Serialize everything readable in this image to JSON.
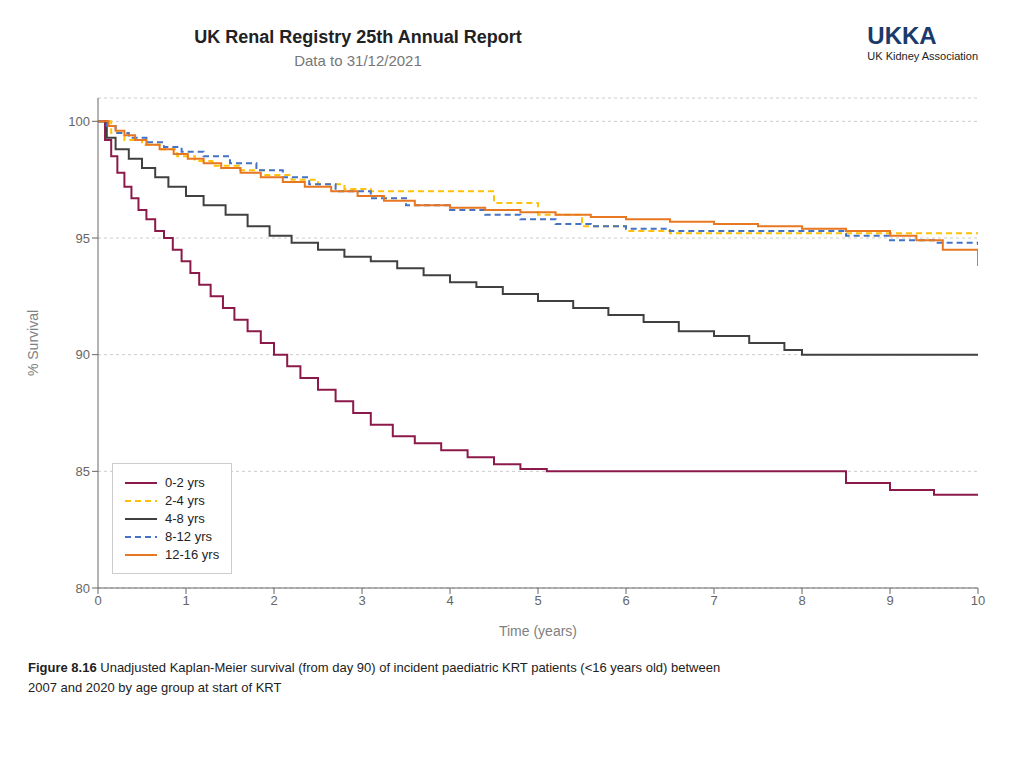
{
  "chart_data": {
    "type": "step",
    "title": "UK Renal Registry 25th Annual Report",
    "subtitle": "Data to 31/12/2021",
    "annotations": [
      "UKKA",
      "UK Kidney Association"
    ],
    "caption_bold": "Figure 8.16",
    "caption": [
      "Unadjusted Kaplan-Meier survival (from day 90) of incident paediatric KRT patients (<16 years old) between",
      "2007 and 2020 by age group at start of KRT"
    ],
    "x_label": "Time (years)",
    "y_label": "% Survival",
    "xlim": [
      0,
      10
    ],
    "ylim": [
      80,
      101
    ],
    "xticks": [
      0,
      1,
      2,
      3,
      4,
      5,
      6,
      7,
      8,
      9,
      10
    ],
    "yticks": [
      80,
      85,
      90,
      95,
      100
    ],
    "grid": true,
    "legend": "lower left",
    "series": [
      {
        "name": "0-2 yrs",
        "color": "#8B1A4A",
        "line_style": "solid",
        "x": [
          0,
          0.08,
          0.15,
          0.22,
          0.3,
          0.38,
          0.46,
          0.55,
          0.65,
          0.75,
          0.85,
          0.95,
          1.05,
          1.15,
          1.28,
          1.42,
          1.55,
          1.7,
          1.85,
          2.0,
          2.15,
          2.3,
          2.5,
          2.7,
          2.9,
          3.1,
          3.35,
          3.6,
          3.9,
          4.2,
          4.5,
          4.8,
          5.1,
          5.5,
          6.0,
          6.5,
          7.0,
          7.5,
          8.0,
          8.5,
          9.0,
          9.5,
          10.0
        ],
        "values": [
          100,
          99.2,
          98.5,
          97.8,
          97.2,
          96.7,
          96.2,
          95.8,
          95.3,
          95.0,
          94.5,
          94.0,
          93.5,
          93.0,
          92.5,
          92.0,
          91.5,
          91.0,
          90.5,
          90.0,
          89.5,
          89.0,
          88.5,
          88.0,
          87.5,
          87.0,
          86.5,
          86.2,
          85.9,
          85.6,
          85.3,
          85.1,
          85.0,
          85.0,
          85.0,
          85.0,
          85.0,
          85.0,
          85.0,
          84.5,
          84.2,
          84.0,
          84.0
        ]
      },
      {
        "name": "2-4 yrs",
        "color": "#FFC107",
        "line_style": "dashed",
        "x": [
          0,
          0.15,
          0.3,
          0.5,
          0.7,
          0.9,
          1.1,
          1.3,
          1.6,
          1.9,
          2.2,
          2.5,
          2.8,
          3.1,
          3.5,
          4.0,
          4.5,
          5.0,
          5.5,
          6.0,
          6.5,
          7.0,
          7.5,
          8.0,
          8.5,
          9.0,
          9.5,
          10.0
        ],
        "values": [
          100,
          99.5,
          99.2,
          99.0,
          98.8,
          98.5,
          98.3,
          98.1,
          97.9,
          97.7,
          97.5,
          97.3,
          97.1,
          97.0,
          97.0,
          97.0,
          96.5,
          96.0,
          95.5,
          95.3,
          95.2,
          95.2,
          95.2,
          95.2,
          95.2,
          95.2,
          95.2,
          95.2
        ]
      },
      {
        "name": "4-8 yrs",
        "color": "#404040",
        "line_style": "solid",
        "x": [
          0,
          0.1,
          0.2,
          0.35,
          0.5,
          0.65,
          0.8,
          1.0,
          1.2,
          1.45,
          1.7,
          1.95,
          2.2,
          2.5,
          2.8,
          3.1,
          3.4,
          3.7,
          4.0,
          4.3,
          4.6,
          5.0,
          5.4,
          5.8,
          6.2,
          6.6,
          7.0,
          7.4,
          7.8,
          8.0,
          8.5,
          9.0,
          9.5,
          10.0
        ],
        "values": [
          100,
          99.3,
          98.8,
          98.4,
          98.0,
          97.6,
          97.2,
          96.8,
          96.4,
          96.0,
          95.5,
          95.1,
          94.8,
          94.5,
          94.2,
          94.0,
          93.7,
          93.4,
          93.1,
          92.9,
          92.6,
          92.3,
          92.0,
          91.7,
          91.4,
          91.0,
          90.8,
          90.5,
          90.2,
          90.0,
          90.0,
          90.0,
          90.0,
          90.0
        ]
      },
      {
        "name": "8-12 yrs",
        "color": "#4472C4",
        "line_style": "dashed",
        "x": [
          0,
          0.1,
          0.2,
          0.35,
          0.55,
          0.75,
          0.95,
          1.2,
          1.5,
          1.8,
          2.1,
          2.4,
          2.7,
          3.1,
          3.5,
          4.0,
          4.4,
          4.8,
          5.2,
          5.6,
          6.0,
          6.5,
          7.0,
          7.5,
          8.0,
          8.5,
          9.0,
          9.5,
          10.0
        ],
        "values": [
          100,
          99.8,
          99.5,
          99.3,
          99.1,
          98.9,
          98.7,
          98.5,
          98.2,
          97.9,
          97.6,
          97.3,
          97.0,
          96.7,
          96.4,
          96.2,
          96.0,
          95.8,
          95.6,
          95.5,
          95.4,
          95.3,
          95.3,
          95.3,
          95.3,
          95.1,
          94.9,
          94.8,
          94.7
        ]
      },
      {
        "name": "12-16 yrs",
        "color": "#E87722",
        "line_style": "solid",
        "x": [
          0,
          0.05,
          0.12,
          0.2,
          0.3,
          0.42,
          0.55,
          0.7,
          0.86,
          1.02,
          1.2,
          1.4,
          1.62,
          1.85,
          2.1,
          2.35,
          2.65,
          2.95,
          3.25,
          3.6,
          4.0,
          4.4,
          4.8,
          5.2,
          5.6,
          6.0,
          6.5,
          7.0,
          7.5,
          8.0,
          8.5,
          9.0,
          9.3,
          9.6,
          10.0
        ],
        "values": [
          100,
          100,
          99.8,
          99.6,
          99.4,
          99.2,
          99.0,
          98.8,
          98.6,
          98.4,
          98.2,
          98.0,
          97.8,
          97.6,
          97.4,
          97.2,
          97.0,
          96.8,
          96.6,
          96.4,
          96.3,
          96.2,
          96.1,
          96.0,
          95.9,
          95.8,
          95.7,
          95.6,
          95.5,
          95.4,
          95.3,
          95.1,
          94.9,
          94.5,
          93.8
        ]
      }
    ]
  }
}
